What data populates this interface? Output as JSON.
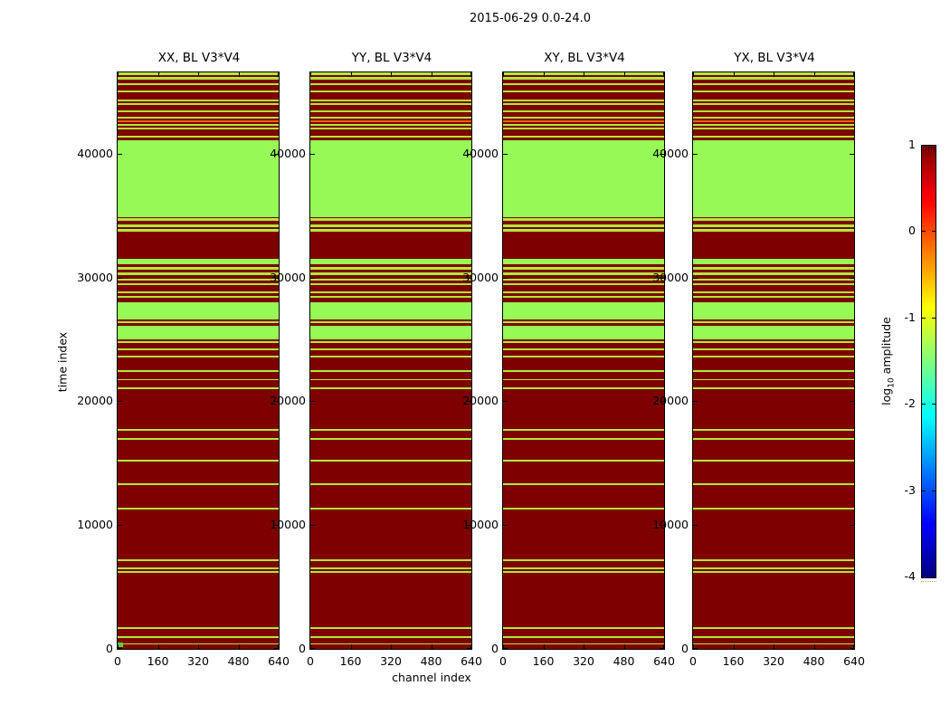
{
  "figure": {
    "suptitle": "2015-06-29 0.0-24.0",
    "xlabel": "channel index",
    "ylabel": "time index",
    "colorbar": {
      "label_prefix": "log",
      "label_sub": "10",
      "label_suffix": " amplitude",
      "vmin": -4,
      "vmax": 1,
      "colormap": "jet",
      "ticks": [
        {
          "label": "1",
          "value": 1
        },
        {
          "label": "0",
          "value": 0
        },
        {
          "label": "-1",
          "value": -1
        },
        {
          "label": "-2",
          "value": -2
        },
        {
          "label": "-3",
          "value": -3
        },
        {
          "label": "-4",
          "value": -4
        }
      ],
      "gradient_stops": [
        [
          "#800000",
          0
        ],
        [
          "#ff0000",
          12.5
        ],
        [
          "#ffff00",
          37.5
        ],
        [
          "#00ffff",
          62.5
        ],
        [
          "#0000ff",
          87.5
        ],
        [
          "#000080",
          100
        ]
      ]
    }
  },
  "chart_data": {
    "type": "heatmap",
    "description": "Four waterfall plots (time index vs channel index) of log10 amplitude for polarizations XX, YY, XY, YX on baseline V3*V4; all four panels share the same horizontal-band pattern of saturated (dark red, ~1) and low (yellow-green, ~ -1.5) values.",
    "panels": [
      {
        "title": "XX, BL V3*V4"
      },
      {
        "title": "YY, BL V3*V4"
      },
      {
        "title": "XY, BL V3*V4"
      },
      {
        "title": "YX, BL V3*V4"
      }
    ],
    "x_range": [
      0,
      640
    ],
    "t_range": [
      0,
      46561
    ],
    "x_ticks": [
      0,
      160,
      320,
      480,
      640
    ],
    "y_ticks": [
      0,
      10000,
      20000,
      30000,
      40000
    ],
    "value_colors": {
      "base": "#7e0000",
      "G": "#97f956",
      "g": "#b0e83c",
      "o": "#e8630e"
    },
    "bands": [
      [
        46561,
        46330,
        "g"
      ],
      [
        46200,
        45980,
        "g"
      ],
      [
        45690,
        45540,
        "g"
      ],
      [
        45100,
        44960,
        "g"
      ],
      [
        44370,
        44230,
        "g"
      ],
      [
        44080,
        43940,
        "g"
      ],
      [
        43500,
        43350,
        "g"
      ],
      [
        42990,
        42840,
        "g"
      ],
      [
        42700,
        42550,
        "o"
      ],
      [
        42410,
        42260,
        "g"
      ],
      [
        42120,
        41970,
        "g"
      ],
      [
        41460,
        41310,
        "g"
      ],
      [
        41095,
        34830,
        "G"
      ],
      [
        34760,
        34590,
        "g"
      ],
      [
        34250,
        34080,
        "g"
      ],
      [
        33930,
        33660,
        "g"
      ],
      [
        31480,
        31040,
        "G"
      ],
      [
        30820,
        30600,
        "g"
      ],
      [
        30380,
        30170,
        "g"
      ],
      [
        29870,
        29730,
        "g"
      ],
      [
        29510,
        29360,
        "g"
      ],
      [
        28850,
        28710,
        "g"
      ],
      [
        28490,
        28340,
        "g"
      ],
      [
        27980,
        26600,
        "G"
      ],
      [
        26450,
        26300,
        "g"
      ],
      [
        26120,
        24990,
        "G"
      ],
      [
        24850,
        24700,
        "g"
      ],
      [
        24260,
        24120,
        "g"
      ],
      [
        23680,
        23530,
        "g"
      ],
      [
        22510,
        22370,
        "g"
      ],
      [
        21790,
        21680,
        "g"
      ],
      [
        21130,
        20990,
        "g"
      ],
      [
        17780,
        17630,
        "g"
      ],
      [
        17050,
        16900,
        "g"
      ],
      [
        15300,
        15160,
        "g"
      ],
      [
        13410,
        13260,
        "g"
      ],
      [
        11370,
        11220,
        "g"
      ],
      [
        7210,
        7070,
        "g"
      ],
      [
        6560,
        6410,
        "g"
      ],
      [
        6270,
        6120,
        "g"
      ],
      [
        1750,
        1600,
        "g"
      ],
      [
        1020,
        870,
        "g"
      ],
      [
        470,
        330,
        "g"
      ]
    ],
    "origin_marker": {
      "panel": 0,
      "t_hi": 510,
      "t_lo": 120,
      "ch_lo": 0,
      "ch_hi": 20,
      "color": "#52d636"
    }
  }
}
